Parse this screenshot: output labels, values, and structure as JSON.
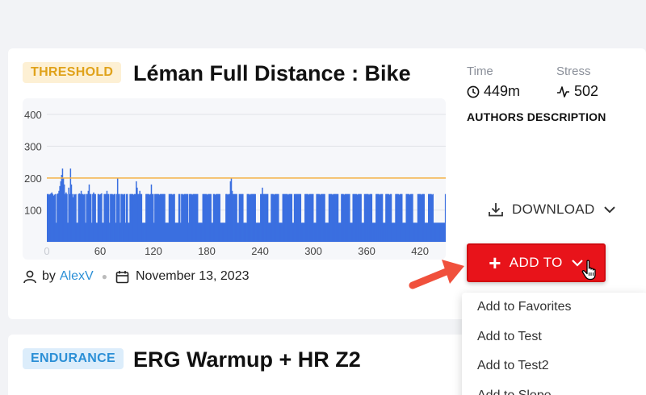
{
  "workouts": [
    {
      "badge": "THRESHOLD",
      "title": "Léman Full Distance : Bike",
      "time_label": "Time",
      "time_value": "449m",
      "stress_label": "Stress",
      "stress_value": "502",
      "authors_description": "AUTHORS DESCRIPTION",
      "by_label": "by",
      "author": "AlexV",
      "date": "November 13, 2023",
      "download_label": "DOWNLOAD",
      "add_to_label": "ADD TO"
    },
    {
      "badge": "ENDURANCE",
      "title": "ERG Warmup + HR Z2"
    }
  ],
  "dropdown": {
    "items": [
      "Add to Favorites",
      "Add to Test",
      "Add to Test2",
      "Add to Slope"
    ]
  },
  "colors": {
    "threshold_badge": "#e0a21a",
    "endurance_badge": "#2b8fd6",
    "power_bars": "#3a6fe0",
    "threshold_line": "#f5b041",
    "add_to_button": "#e8131a"
  },
  "icons": [
    "clock-icon",
    "pulse-icon",
    "download-icon",
    "chevron-down-icon",
    "user-icon",
    "calendar-icon",
    "plus-icon",
    "pointer-hand-icon",
    "arrow-icon"
  ],
  "chart_data": {
    "type": "bar",
    "x_ticks": [
      0,
      60,
      120,
      180,
      240,
      300,
      360,
      420
    ],
    "y_ticks": [
      100,
      200,
      300,
      400
    ],
    "xlim": [
      0,
      449
    ],
    "ylim": [
      0,
      430
    ],
    "reference_line": 200,
    "grid": true,
    "values": [
      150,
      150,
      148,
      150,
      152,
      155,
      150,
      145,
      148,
      150,
      60,
      150,
      152,
      160,
      175,
      190,
      210,
      230,
      200,
      180,
      150,
      155,
      150,
      60,
      170,
      150,
      230,
      180,
      150,
      140,
      150,
      148,
      150,
      60,
      60,
      150,
      152,
      150,
      160,
      150,
      150,
      148,
      150,
      60,
      150,
      150,
      160,
      180,
      150,
      150,
      60,
      150,
      155,
      150,
      150,
      60,
      60,
      150,
      150,
      148,
      150,
      152,
      60,
      60,
      150,
      150,
      150,
      160,
      150,
      150,
      60,
      150,
      150,
      150,
      148,
      150,
      150,
      60,
      150,
      200,
      150,
      150,
      60,
      150,
      150,
      148,
      150,
      150,
      60,
      150,
      150,
      60,
      60,
      150,
      150,
      150,
      150,
      148,
      150,
      150,
      190,
      170,
      150,
      150,
      160,
      150,
      150,
      60,
      60,
      60,
      60,
      150,
      150,
      150,
      150,
      148,
      150,
      180,
      150,
      150,
      60,
      150,
      150,
      150,
      150,
      150,
      148,
      150,
      150,
      150,
      150,
      150,
      150,
      60,
      60,
      60,
      60,
      150,
      150,
      150,
      150,
      148,
      150,
      150,
      60,
      60,
      60,
      60,
      150,
      150,
      60,
      150,
      150,
      148,
      150,
      150,
      150,
      150,
      150,
      60,
      150,
      150,
      150,
      148,
      150,
      150,
      150,
      150,
      150,
      150,
      60,
      60,
      60,
      60,
      60,
      150,
      150,
      150,
      150,
      150,
      148,
      150,
      150,
      150,
      150,
      60,
      60,
      150,
      150,
      148,
      150,
      150,
      150,
      150,
      150,
      60,
      60,
      60,
      60,
      60,
      60,
      150,
      150,
      148,
      150,
      150,
      190,
      200,
      160,
      150,
      150,
      150,
      150,
      150,
      60,
      60,
      150,
      150,
      150,
      150,
      150,
      60,
      60,
      60,
      60,
      150,
      150,
      150,
      148,
      150,
      150,
      150,
      150,
      150,
      150,
      60,
      60,
      60,
      60,
      60,
      150,
      150,
      170,
      150,
      150,
      150,
      150,
      150,
      150,
      60,
      60,
      60,
      150,
      150,
      150,
      148,
      150,
      150,
      150,
      150,
      150,
      60,
      60,
      60,
      60,
      150,
      150,
      150,
      150,
      150,
      150,
      148,
      150,
      150,
      150,
      150,
      60,
      60,
      150,
      150,
      150,
      150,
      150,
      150,
      150,
      150,
      60,
      60,
      60,
      60,
      150,
      150,
      150,
      150,
      148,
      150,
      150,
      150,
      150,
      150,
      60,
      60,
      60,
      150,
      150,
      150,
      150,
      148,
      150,
      150,
      150,
      150,
      150,
      60,
      60,
      60,
      60,
      150,
      150,
      150,
      150,
      148,
      150,
      150,
      150,
      150,
      150,
      150,
      60,
      60,
      60,
      150,
      150,
      150,
      148,
      150,
      150,
      150,
      150,
      150,
      150,
      60,
      60,
      60,
      150,
      150,
      150,
      150,
      150,
      148,
      150,
      150,
      150,
      150,
      60,
      60,
      60,
      150,
      150,
      150,
      150,
      150,
      148,
      150,
      150,
      150,
      60,
      60,
      60,
      60,
      150,
      150,
      150,
      150,
      148,
      150,
      150,
      150,
      60,
      60,
      60,
      150,
      150,
      150,
      150,
      148,
      150,
      150,
      60,
      60,
      60,
      60,
      150,
      150,
      150,
      150,
      148,
      150,
      150,
      150,
      60,
      60,
      60,
      60,
      150,
      150,
      150,
      150,
      148,
      150,
      150,
      150,
      60,
      60,
      60,
      60,
      60,
      150,
      150,
      150,
      150,
      148,
      150,
      150,
      150,
      60,
      60,
      60,
      60,
      150,
      150,
      150,
      150,
      148,
      150,
      60,
      60,
      60,
      60,
      60,
      60,
      60,
      60,
      60,
      60,
      60,
      60,
      60,
      150
    ]
  }
}
